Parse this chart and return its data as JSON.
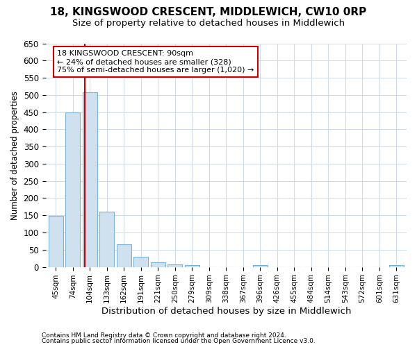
{
  "title1": "18, KINGSWOOD CRESCENT, MIDDLEWICH, CW10 0RP",
  "title2": "Size of property relative to detached houses in Middlewich",
  "xlabel": "Distribution of detached houses by size in Middlewich",
  "ylabel": "Number of detached properties",
  "categories": [
    "45sqm",
    "74sqm",
    "104sqm",
    "133sqm",
    "162sqm",
    "191sqm",
    "221sqm",
    "250sqm",
    "279sqm",
    "309sqm",
    "338sqm",
    "367sqm",
    "396sqm",
    "426sqm",
    "455sqm",
    "484sqm",
    "514sqm",
    "543sqm",
    "572sqm",
    "601sqm",
    "631sqm"
  ],
  "values": [
    148,
    450,
    507,
    160,
    65,
    30,
    13,
    7,
    5,
    0,
    0,
    0,
    5,
    0,
    0,
    0,
    0,
    0,
    0,
    0,
    5
  ],
  "bar_color": "#cfe0ef",
  "bar_edge_color": "#7ab3d4",
  "vline_x": 1.72,
  "vline_color": "#cc0000",
  "annotation_text": "18 KINGSWOOD CRESCENT: 90sqm\n← 24% of detached houses are smaller (328)\n75% of semi-detached houses are larger (1,020) →",
  "annotation_box_facecolor": "#ffffff",
  "annotation_box_edgecolor": "#cc0000",
  "ylim_max": 650,
  "yticks": [
    0,
    50,
    100,
    150,
    200,
    250,
    300,
    350,
    400,
    450,
    500,
    550,
    600,
    650
  ],
  "footer1": "Contains HM Land Registry data © Crown copyright and database right 2024.",
  "footer2": "Contains public sector information licensed under the Open Government Licence v3.0.",
  "bg_color": "#ffffff",
  "plot_bg_color": "#ffffff",
  "grid_color": "#d0dce8",
  "title1_fontsize": 11,
  "title2_fontsize": 9.5
}
